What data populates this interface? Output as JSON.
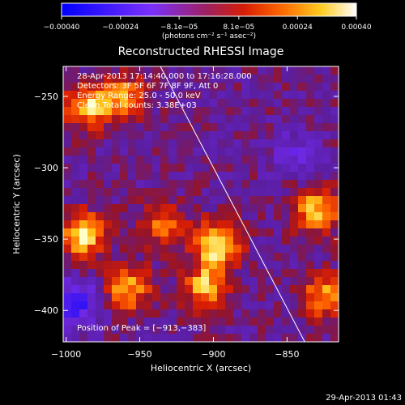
{
  "chart_data": {
    "type": "heatmap",
    "title": "Reconstructed RHESSI Image",
    "xlabel": "Heliocentric X (arcsec)",
    "ylabel": "Heliocentric Y (arcsec)",
    "xlim": [
      -1002,
      -815
    ],
    "ylim": [
      -422,
      -229
    ],
    "x_ticks": [
      -1000,
      -950,
      -900,
      -850
    ],
    "x_tick_labels": [
      "−1000",
      "−950",
      "−900",
      "−850"
    ],
    "y_ticks": [
      -250,
      -300,
      -350,
      -400
    ],
    "y_tick_labels": [
      "−250",
      "−300",
      "−350",
      "−400"
    ],
    "colorbar": {
      "range": [
        -0.0004,
        0.0004
      ],
      "ticks": [
        -0.0004,
        -0.00024,
        -8.1e-05,
        8.1e-05,
        0.00024,
        0.0004
      ],
      "tick_labels": [
        "−0.00040",
        "−0.00024",
        "−8.1e−05",
        "8.1e−05",
        "0.00024",
        "0.00040"
      ],
      "unit_label": "(photons cm⁻² s⁻¹ asec⁻²)",
      "colors": [
        "#0000ff",
        "#8a2be2",
        "#b22222",
        "#ff4500",
        "#ffa500",
        "#ffff66",
        "#ffffff"
      ]
    },
    "annotations": [
      "28-Apr-2013 17:14:40.000 to 17:16:28.000",
      "Detectors: 3F 5F 6F 7F 8F 9F, Att 0",
      "Energy Range: 25.0 - 50.0 keV",
      "Clean    Total counts: 3.38E+03"
    ],
    "peak_label": "Position of Peak = [−913,−383]",
    "limb_line": {
      "x": [
        -936,
        -838
      ],
      "y": [
        -229,
        -422
      ]
    },
    "hot_regions": [
      {
        "x": -988,
        "y": -347,
        "level": 0.92
      },
      {
        "x": -985,
        "y": -257,
        "level": 0.85
      },
      {
        "x": -898,
        "y": -353,
        "level": 0.98
      },
      {
        "x": -905,
        "y": -383,
        "level": 0.8
      },
      {
        "x": -935,
        "y": -340,
        "level": 0.55
      },
      {
        "x": -958,
        "y": -385,
        "level": 0.75
      },
      {
        "x": -830,
        "y": -330,
        "level": 0.85
      },
      {
        "x": -825,
        "y": -390,
        "level": 0.7
      },
      {
        "x": -960,
        "y": -250,
        "level": 0.6
      }
    ],
    "cold_regions": [
      {
        "x": -993,
        "y": -395,
        "level": -0.75
      },
      {
        "x": -845,
        "y": -290,
        "level": -0.35
      }
    ]
  },
  "footer_timestamp": "29-Apr-2013 01:43"
}
